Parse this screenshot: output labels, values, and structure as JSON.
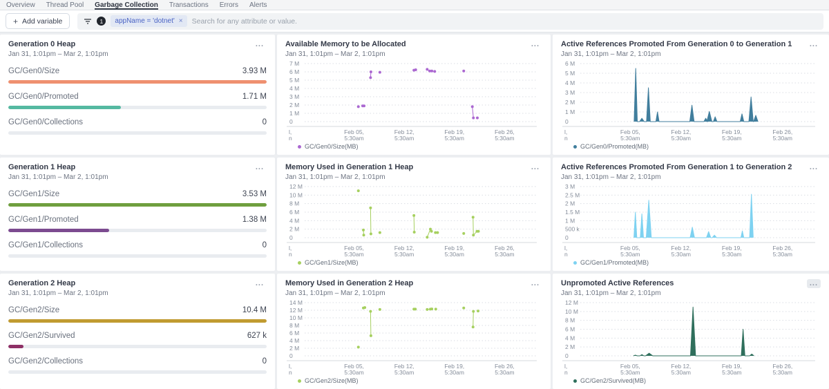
{
  "nav": {
    "tabs": [
      {
        "label": "Overview"
      },
      {
        "label": "Thread Pool"
      },
      {
        "label": "Garbage Collection"
      },
      {
        "label": "Transactions"
      },
      {
        "label": "Errors"
      },
      {
        "label": "Alerts"
      }
    ],
    "active_tab": "Garbage Collection"
  },
  "filter_bar": {
    "plus_icon": "+",
    "add_variable_label": "Add variable",
    "filter_count": "1",
    "chip_text": "appName = 'dotnet'",
    "chip_remove": "×",
    "search_placeholder": "Search for any attribute or value."
  },
  "xaxis": {
    "domain_days": 32,
    "ticks": [
      {
        "line1": "Feb 05,",
        "line2": "5:30am",
        "day": 6.7
      },
      {
        "line1": "Feb 12,",
        "line2": "5:30am",
        "day": 13.7
      },
      {
        "line1": "Feb 19,",
        "line2": "5:30am",
        "day": 20.7
      },
      {
        "line1": "Feb 26,",
        "line2": "5:30am",
        "day": 27.7
      }
    ],
    "clipped": [
      "l,",
      "n"
    ]
  },
  "panels": [
    {
      "kind": "metrics",
      "title": "Generation 0 Heap",
      "subtitle": "Jan 31, 1:01pm – Mar 2, 1:01pm",
      "menu": "...",
      "metrics": [
        {
          "label": "GC/Gen0/Size",
          "value": "3.93 M",
          "pct": 100,
          "color": "#ef9070"
        },
        {
          "label": "GC/Gen0/Promoted",
          "value": "1.71 M",
          "pct": 43.5,
          "color": "#55b9a1"
        },
        {
          "label": "GC/Gen0/Collections",
          "value": "0",
          "pct": 0,
          "color": "#e9ecf0"
        }
      ]
    },
    {
      "kind": "chart",
      "title": "Available Memory to be Allocated",
      "subtitle": "Jan 31, 1:01pm – Mar 2, 1:01pm",
      "menu": "...",
      "legend": {
        "label": "GC/Gen0/Size(MB)",
        "color": "#ab68d1"
      },
      "chart_data": {
        "type": "scatter",
        "series": "GC/Gen0/Size(MB)",
        "color": "#ab68d1",
        "ymax": 7,
        "yticks": {
          "labels": [
            "7 M",
            "6 M",
            "5 M",
            "4 M",
            "3 M",
            "2 M",
            "1 M",
            "0"
          ],
          "values": [
            7,
            6,
            5,
            4,
            3,
            2,
            1,
            0
          ]
        },
        "points": [
          [
            7.3,
            1.8
          ],
          [
            7.9,
            1.9
          ],
          [
            8.1,
            1.9
          ],
          [
            9.0,
            5.3
          ],
          [
            9.05,
            6.0
          ],
          [
            10.3,
            5.95
          ],
          [
            15.05,
            6.2
          ],
          [
            15.3,
            6.25
          ],
          [
            16.9,
            6.3
          ],
          [
            17.25,
            6.1
          ],
          [
            17.55,
            6.1
          ],
          [
            17.95,
            6.05
          ],
          [
            22.0,
            6.1
          ],
          [
            23.2,
            1.8
          ],
          [
            23.35,
            0.45
          ],
          [
            23.9,
            0.45
          ]
        ]
      }
    },
    {
      "kind": "chart",
      "title": "Active References Promoted From Generation 0 to Generation 1",
      "subtitle": "Jan 31, 1:01pm – Mar 2, 1:01pm",
      "menu": "...",
      "legend": {
        "label": "GC/Gen0/Promoted(MB)",
        "color": "#417e9d"
      },
      "chart_data": {
        "type": "area",
        "series": "GC/Gen0/Promoted(MB)",
        "color": "#417e9d",
        "ymax": 6,
        "yticks": {
          "labels": [
            "6 M",
            "5 M",
            "4 M",
            "3 M",
            "2 M",
            "1 M",
            "0"
          ],
          "values": [
            6,
            5,
            4,
            3,
            2,
            1,
            0
          ]
        },
        "spikes": [
          [
            7.45,
            5.5,
            0.22
          ],
          [
            8.3,
            0.35,
            0.32
          ],
          [
            9.2,
            3.5,
            0.26
          ],
          [
            10.45,
            1.0,
            0.22
          ],
          [
            15.2,
            1.7,
            0.3
          ],
          [
            17.1,
            0.35,
            0.25
          ],
          [
            17.6,
            1.05,
            0.35
          ],
          [
            18.4,
            0.5,
            0.25
          ],
          [
            22.1,
            0.8,
            0.25
          ],
          [
            23.35,
            2.55,
            0.3
          ],
          [
            24.0,
            0.65,
            0.3
          ]
        ]
      }
    },
    {
      "kind": "metrics",
      "title": "Generation 1 Heap",
      "subtitle": "Jan 31, 1:01pm – Mar 2, 1:01pm",
      "menu": "...",
      "metrics": [
        {
          "label": "GC/Gen1/Size",
          "value": "3.53 M",
          "pct": 100,
          "color": "#6f9f3e"
        },
        {
          "label": "GC/Gen1/Promoted",
          "value": "1.38 M",
          "pct": 39,
          "color": "#7c4b90"
        },
        {
          "label": "GC/Gen1/Collections",
          "value": "0",
          "pct": 0,
          "color": "#e9ecf0"
        }
      ]
    },
    {
      "kind": "chart",
      "title": "Memory Used in Generation 1 Heap",
      "subtitle": "Jan 31, 1:01pm – Mar 2, 1:01pm",
      "menu": "...",
      "legend": {
        "label": "GC/Gen1/Size(MB)",
        "color": "#a6d05f"
      },
      "chart_data": {
        "type": "scatter",
        "series": "GC/Gen1/Size(MB)",
        "color": "#a6d05f",
        "ymax": 12,
        "yticks": {
          "labels": [
            "12 M",
            "10 M",
            "8 M",
            "6 M",
            "4 M",
            "2 M",
            "0"
          ],
          "values": [
            12,
            10,
            8,
            6,
            4,
            2,
            0
          ]
        },
        "points": [
          [
            7.3,
            11.0
          ],
          [
            8.0,
            1.8
          ],
          [
            8.05,
            0.6
          ],
          [
            9.0,
            7.0
          ],
          [
            9.05,
            0.9
          ],
          [
            10.3,
            1.2
          ],
          [
            15.05,
            5.2
          ],
          [
            15.1,
            1.3
          ],
          [
            16.9,
            0.1
          ],
          [
            17.35,
            2.0
          ],
          [
            17.5,
            1.5
          ],
          [
            18.05,
            1.2
          ],
          [
            18.35,
            1.2
          ],
          [
            22.0,
            1.0
          ],
          [
            23.3,
            4.8
          ],
          [
            23.35,
            0.6
          ],
          [
            23.85,
            1.5
          ],
          [
            24.05,
            1.5
          ]
        ]
      }
    },
    {
      "kind": "chart",
      "title": "Active References Promoted From Generation 1 to Generation 2",
      "subtitle": "Jan 31, 1:01pm – Mar 2, 1:01pm",
      "menu": "...",
      "legend": {
        "label": "GC/Gen1/Promoted(MB)",
        "color": "#7ed2f1"
      },
      "chart_data": {
        "type": "area",
        "series": "GC/Gen1/Promoted(MB)",
        "color": "#7ed2f1",
        "ymax": 3,
        "yticks": {
          "labels": [
            "3 M",
            "2.5 M",
            "2 M",
            "1.5 M",
            "1 M",
            "500 k",
            "0"
          ],
          "values": [
            3,
            2.5,
            2,
            1.5,
            1,
            0.5,
            0
          ]
        },
        "spikes": [
          [
            7.4,
            1.5,
            0.2
          ],
          [
            8.3,
            1.4,
            0.22
          ],
          [
            9.25,
            2.2,
            0.35
          ],
          [
            15.25,
            0.62,
            0.3
          ],
          [
            17.5,
            0.36,
            0.3
          ],
          [
            18.3,
            0.15,
            0.3
          ],
          [
            22.15,
            0.4,
            0.2
          ],
          [
            23.4,
            2.55,
            0.25
          ]
        ]
      }
    },
    {
      "kind": "metrics",
      "title": "Generation 2 Heap",
      "subtitle": "Jan 31, 1:01pm – Mar 2, 1:01pm",
      "menu": "...",
      "metrics": [
        {
          "label": "GC/Gen2/Size",
          "value": "10.4 M",
          "pct": 100,
          "color": "#c19b31"
        },
        {
          "label": "GC/Gen2/Survived",
          "value": "627 k",
          "pct": 6,
          "color": "#8e3066"
        },
        {
          "label": "GC/Gen2/Collections",
          "value": "0",
          "pct": 0,
          "color": "#e9ecf0"
        }
      ]
    },
    {
      "kind": "chart",
      "title": "Memory Used in Generation 2 Heap",
      "subtitle": "Jan 31, 1:01pm – Mar 2, 1:01pm",
      "menu": "...",
      "legend": {
        "label": "GC/Gen2/Size(MB)",
        "color": "#a6d05f"
      },
      "chart_data": {
        "type": "scatter",
        "series": "GC/Gen2/Size(MB)",
        "color": "#a6d05f",
        "ymax": 14,
        "yticks": {
          "labels": [
            "14 M",
            "12 M",
            "10 M",
            "8 M",
            "6 M",
            "4 M",
            "2 M",
            "0"
          ],
          "values": [
            14,
            12,
            10,
            8,
            6,
            4,
            2,
            0
          ]
        },
        "points": [
          [
            7.3,
            2.3
          ],
          [
            8.0,
            12.6
          ],
          [
            8.2,
            12.7
          ],
          [
            9.0,
            11.7
          ],
          [
            9.05,
            5.3
          ],
          [
            10.3,
            12.2
          ],
          [
            15.05,
            12.3
          ],
          [
            15.25,
            12.3
          ],
          [
            16.9,
            12.2
          ],
          [
            17.35,
            12.3
          ],
          [
            17.55,
            12.35
          ],
          [
            18.1,
            12.3
          ],
          [
            22.0,
            12.6
          ],
          [
            23.3,
            7.6
          ],
          [
            23.35,
            11.7
          ],
          [
            24.0,
            11.8
          ]
        ]
      }
    },
    {
      "kind": "chart",
      "title": "Unpromoted Active References",
      "subtitle": "Jan 31, 1:01pm – Mar 2, 1:01pm",
      "menu": "...",
      "legend": {
        "label": "GC/Gen2/Survived(MB)",
        "color": "#2f6f5c"
      },
      "chart_data": {
        "type": "area",
        "series": "GC/Gen2/Survived(MB)",
        "color": "#2f6f5c",
        "ymax": 12,
        "yticks": {
          "labels": [
            "12 M",
            "10 M",
            "8 M",
            "6 M",
            "4 M",
            "2 M",
            "0"
          ],
          "values": [
            12,
            10,
            8,
            6,
            4,
            2,
            0
          ]
        },
        "spikes": [
          [
            7.4,
            0.15,
            0.28
          ],
          [
            8.3,
            0.28,
            0.28
          ],
          [
            9.3,
            0.6,
            0.5
          ],
          [
            15.35,
            11.0,
            0.35
          ],
          [
            22.25,
            6.0,
            0.25
          ],
          [
            23.45,
            0.4,
            0.3
          ]
        ]
      }
    }
  ]
}
